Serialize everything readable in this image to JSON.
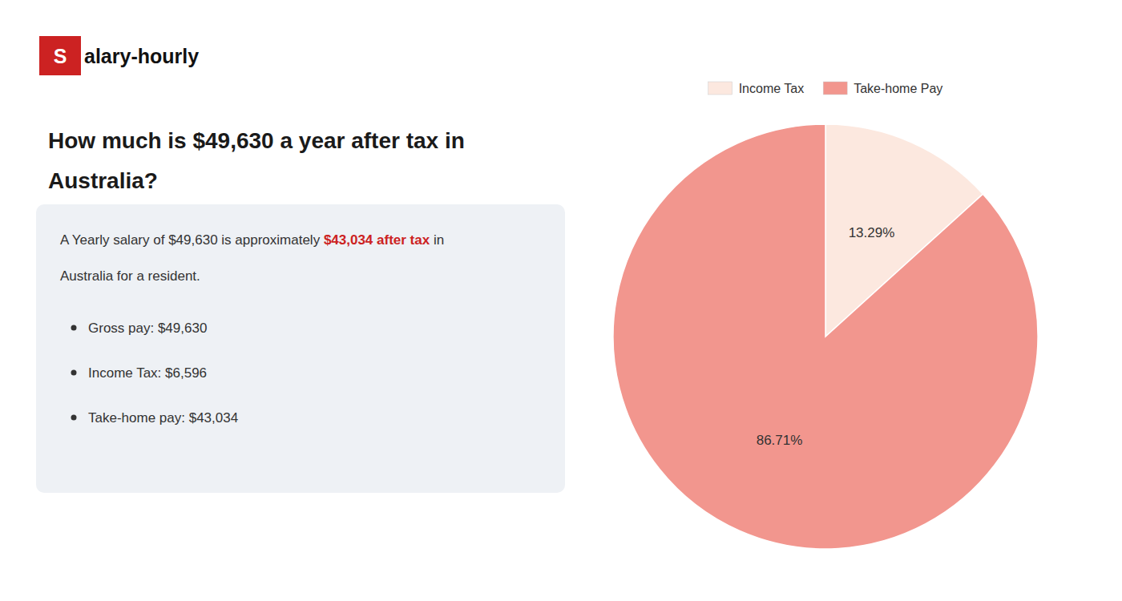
{
  "chart_data": {
    "type": "pie",
    "title": [
      "How much is $49,630 a year after tax in",
      "Australia?"
    ],
    "annotations": [
      {
        "text": "S",
        "color": "#cc2222"
      },
      {
        "text": "alary-hourly"
      },
      {
        "text": "A Yearly salary of $49,630 is approximately "
      },
      {
        "text": "$43,034 after tax",
        "color": "#cc2222"
      },
      {
        "text": " in"
      },
      {
        "text": "Australia for a resident."
      },
      {
        "text": "Gross pay: $49,630"
      },
      {
        "text": "Income Tax: $6,596"
      },
      {
        "text": "Take-home pay: $43,034"
      }
    ],
    "categories": [
      "Income Tax",
      "Take-home Pay"
    ],
    "values": [
      13.29,
      86.71
    ],
    "value_labels": [
      "13.29%",
      "86.71%"
    ],
    "colors": [
      "#fce8df",
      "#f2968e"
    ],
    "data_labels": true,
    "legend": "top"
  }
}
